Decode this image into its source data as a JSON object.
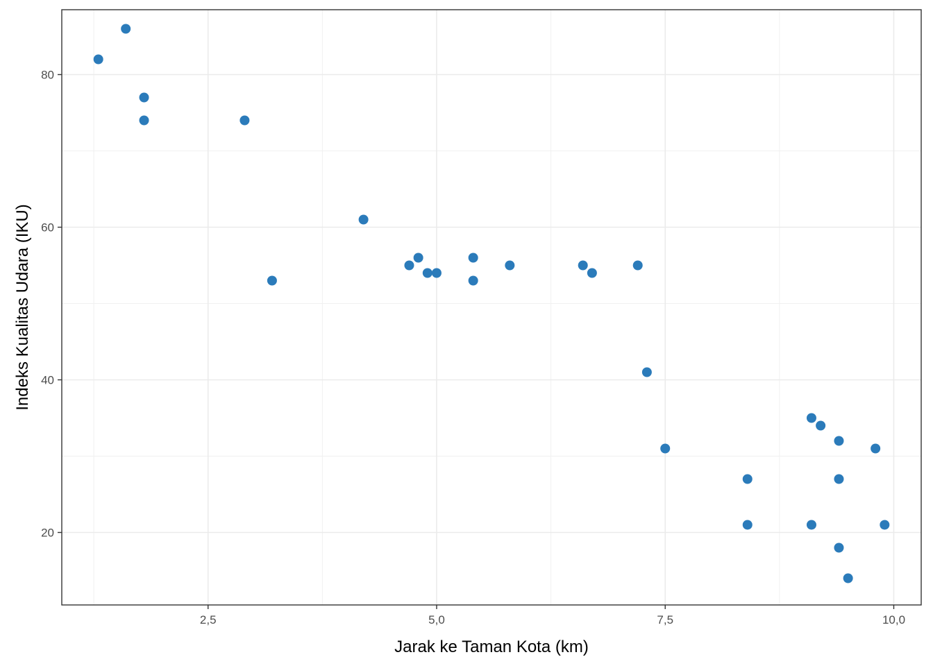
{
  "chart_data": {
    "type": "scatter",
    "title": "",
    "xlabel": "Jarak ke Taman Kota (km)",
    "ylabel": "Indeks Kualitas Udara (IKU)",
    "xlim": [
      0.9,
      10.3
    ],
    "ylim": [
      10.5,
      88.5
    ],
    "x_ticks": [
      2.5,
      5.0,
      7.5,
      10.0
    ],
    "x_tick_labels": [
      "2,5",
      "5,0",
      "7,5",
      "10,0"
    ],
    "y_ticks": [
      20,
      40,
      60,
      80
    ],
    "y_tick_labels": [
      "20",
      "40",
      "60",
      "80"
    ],
    "grid": true,
    "legend": "none",
    "point_color": "#2b7bba",
    "points": [
      {
        "x": 1.3,
        "y": 82
      },
      {
        "x": 1.6,
        "y": 86
      },
      {
        "x": 1.8,
        "y": 77
      },
      {
        "x": 1.8,
        "y": 74
      },
      {
        "x": 2.9,
        "y": 74
      },
      {
        "x": 3.2,
        "y": 53
      },
      {
        "x": 4.2,
        "y": 61
      },
      {
        "x": 4.7,
        "y": 55
      },
      {
        "x": 4.8,
        "y": 56
      },
      {
        "x": 4.9,
        "y": 54
      },
      {
        "x": 5.0,
        "y": 54
      },
      {
        "x": 5.4,
        "y": 56
      },
      {
        "x": 5.4,
        "y": 53
      },
      {
        "x": 5.8,
        "y": 55
      },
      {
        "x": 6.6,
        "y": 55
      },
      {
        "x": 6.7,
        "y": 54
      },
      {
        "x": 7.2,
        "y": 55
      },
      {
        "x": 7.3,
        "y": 41
      },
      {
        "x": 7.5,
        "y": 31
      },
      {
        "x": 8.4,
        "y": 27
      },
      {
        "x": 8.4,
        "y": 21
      },
      {
        "x": 9.1,
        "y": 35
      },
      {
        "x": 9.2,
        "y": 34
      },
      {
        "x": 9.1,
        "y": 21
      },
      {
        "x": 9.4,
        "y": 32
      },
      {
        "x": 9.4,
        "y": 27
      },
      {
        "x": 9.4,
        "y": 18
      },
      {
        "x": 9.5,
        "y": 14
      },
      {
        "x": 9.8,
        "y": 31
      },
      {
        "x": 9.9,
        "y": 21
      }
    ]
  }
}
